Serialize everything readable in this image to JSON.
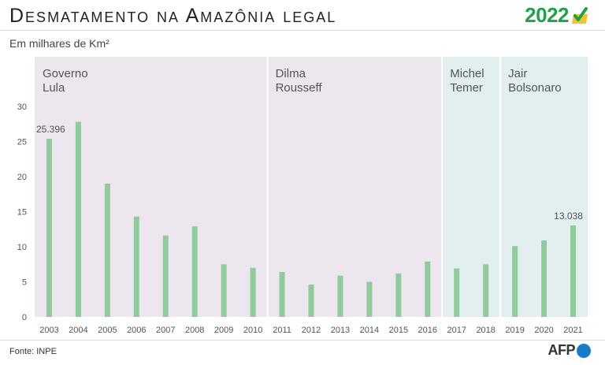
{
  "header": {
    "title": "Desmatamento na Amazônia legal",
    "logo_text": "2022",
    "subtitle": "Em milhares de Km²"
  },
  "footer": {
    "source": "Fonte: INPE",
    "agency": "AFP"
  },
  "colors": {
    "bar": "#8fcb9b",
    "period_lula_dilma": "#ede6ee",
    "period_temer_bolsonaro": "#e3efef",
    "logo_green": "#21a04a",
    "afp_blue": "#1a7cc9"
  },
  "chart_data": {
    "type": "bar",
    "categories": [
      "2003",
      "2004",
      "2005",
      "2006",
      "2007",
      "2008",
      "2009",
      "2010",
      "2011",
      "2012",
      "2013",
      "2014",
      "2015",
      "2016",
      "2017",
      "2018",
      "2019",
      "2020",
      "2021"
    ],
    "series": [
      {
        "values": [
          25.396,
          27.8,
          19.0,
          14.3,
          11.6,
          12.9,
          7.5,
          7.0,
          6.4,
          4.6,
          5.9,
          5.0,
          6.2,
          7.9,
          6.9,
          7.5,
          10.1,
          10.9,
          13.038
        ]
      }
    ],
    "ylim": [
      0,
      30
    ],
    "yticks": [
      0,
      5,
      10,
      15,
      20,
      25,
      30
    ],
    "data_labels": [
      {
        "index": 0,
        "text": "25.396"
      },
      {
        "index": 18,
        "text": "13.038"
      }
    ],
    "periods": [
      {
        "line1": "Governo",
        "line2": "Lula",
        "start": "2003",
        "end": "2010",
        "tone": "lula_dilma"
      },
      {
        "line1": "Dilma",
        "line2": "Rousseff",
        "start": "2011",
        "end": "2016",
        "tone": "lula_dilma"
      },
      {
        "line1": "Michel",
        "line2": "Temer",
        "start": "2017",
        "end": "2018",
        "tone": "temer_bolsonaro"
      },
      {
        "line1": "Jair",
        "line2": "Bolsonaro",
        "start": "2019",
        "end": "2021",
        "tone": "temer_bolsonaro"
      }
    ],
    "grid": false
  }
}
